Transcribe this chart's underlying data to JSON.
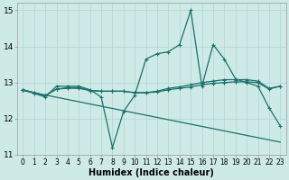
{
  "title": "",
  "xlabel": "Humidex (Indice chaleur)",
  "xlim": [
    -0.5,
    23.5
  ],
  "ylim": [
    11,
    15.2
  ],
  "yticks": [
    11,
    12,
    13,
    14,
    15
  ],
  "xticks": [
    0,
    1,
    2,
    3,
    4,
    5,
    6,
    7,
    8,
    9,
    10,
    11,
    12,
    13,
    14,
    15,
    16,
    17,
    18,
    19,
    20,
    21,
    22,
    23
  ],
  "background_color": "#ceeae7",
  "grid_color": "#b8d8d5",
  "line_color": "#1a706b",
  "series_volatile": [
    12.8,
    12.7,
    12.6,
    12.9,
    12.9,
    12.9,
    12.8,
    12.6,
    11.2,
    12.2,
    12.65,
    13.65,
    13.8,
    13.85,
    14.05,
    15.0,
    12.9,
    14.05,
    13.65,
    13.1,
    13.0,
    12.9,
    12.3,
    11.8
  ],
  "series_flat1": [
    12.8,
    12.72,
    12.64,
    12.82,
    12.84,
    12.84,
    12.78,
    12.76,
    12.76,
    12.76,
    12.72,
    12.72,
    12.74,
    12.8,
    12.84,
    12.88,
    12.94,
    12.98,
    13.0,
    13.02,
    13.02,
    13.0,
    12.82,
    12.9
  ],
  "series_flat2": [
    12.8,
    12.72,
    12.64,
    12.82,
    12.86,
    12.86,
    12.78,
    12.76,
    12.76,
    12.76,
    12.72,
    12.72,
    12.76,
    12.84,
    12.88,
    12.94,
    13.0,
    13.04,
    13.08,
    13.08,
    13.08,
    13.04,
    12.84,
    12.9
  ],
  "trend_x": [
    0,
    23
  ],
  "trend_y": [
    12.78,
    11.35
  ],
  "xtick_fontsize": 5.5,
  "ytick_fontsize": 6.5,
  "xlabel_fontsize": 7.0
}
